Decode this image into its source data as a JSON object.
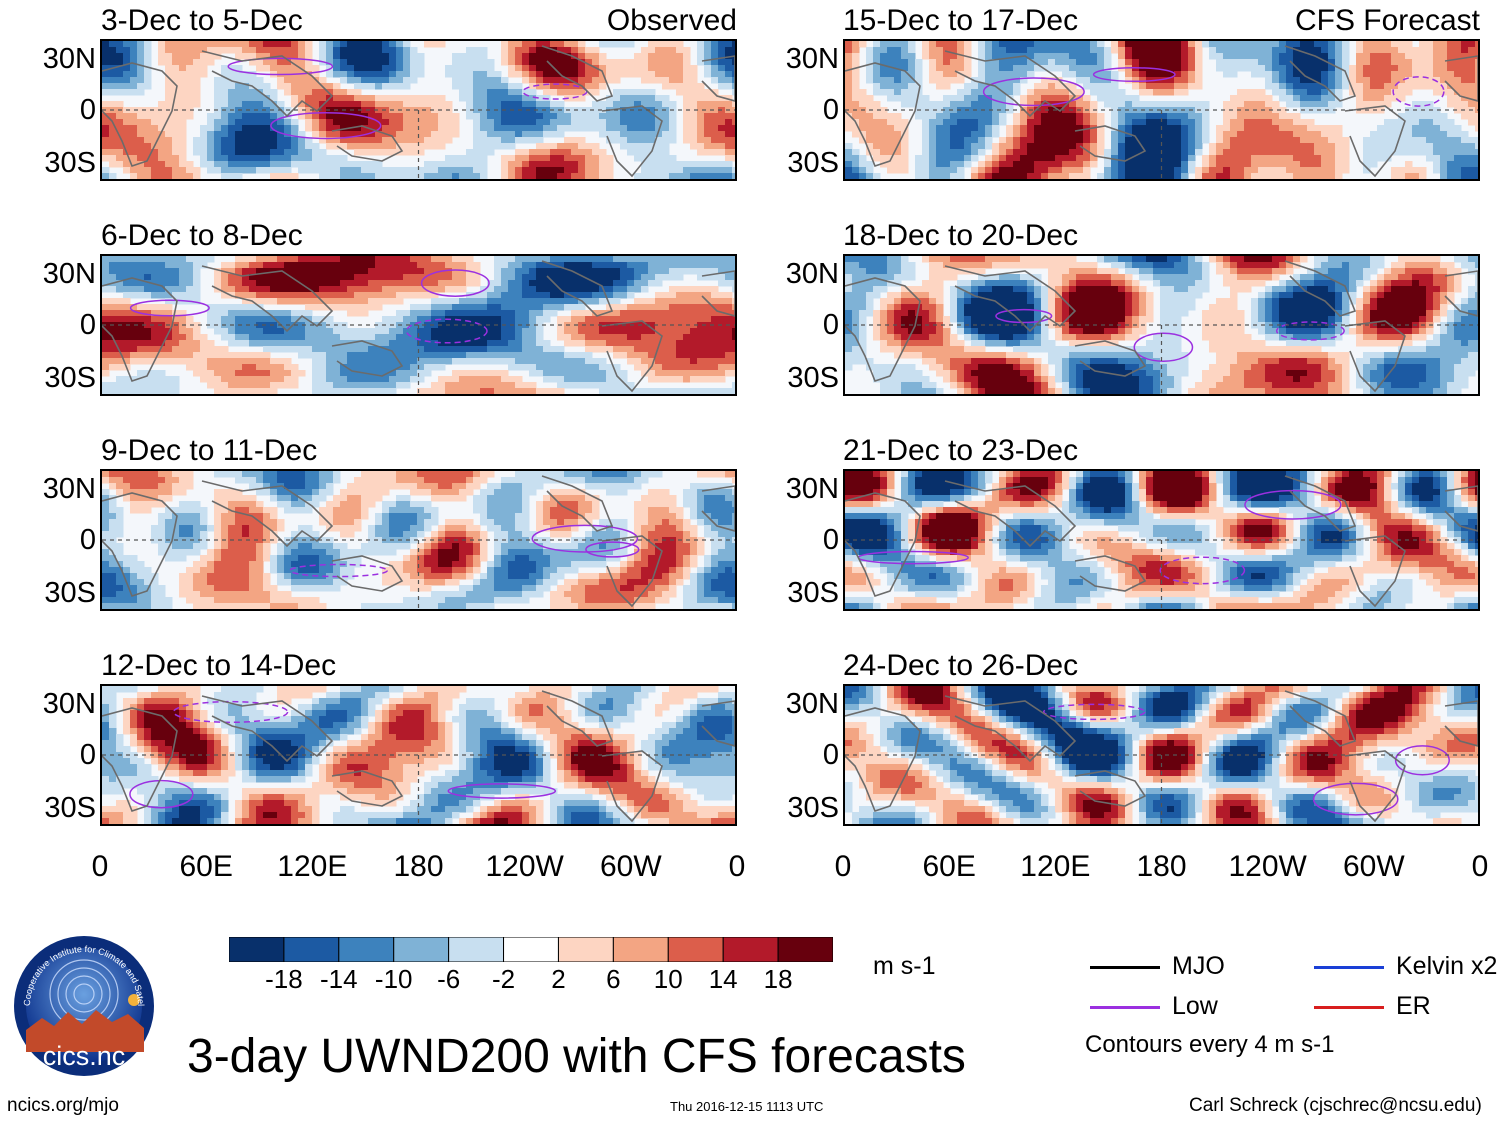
{
  "chart_data": {
    "type": "heatmap",
    "title": "3-day UWND200 with CFS forecasts",
    "variable": "UWND200",
    "units": "m s-1",
    "panels": [
      {
        "period": "3-Dec to 5-Dec",
        "tag": "Observed"
      },
      {
        "period": "6-Dec to 8-Dec",
        "tag": ""
      },
      {
        "period": "9-Dec to 11-Dec",
        "tag": ""
      },
      {
        "period": "12-Dec to 14-Dec",
        "tag": ""
      },
      {
        "period": "15-Dec to 17-Dec",
        "tag": "CFS Forecast"
      },
      {
        "period": "18-Dec to 20-Dec",
        "tag": ""
      },
      {
        "period": "21-Dec to 23-Dec",
        "tag": ""
      },
      {
        "period": "24-Dec to 26-Dec",
        "tag": ""
      }
    ],
    "y_ticks": [
      "30N",
      "0",
      "30S"
    ],
    "x_ticks": [
      "0",
      "60E",
      "120E",
      "180",
      "120W",
      "60W",
      "0"
    ],
    "ylim": [
      -40,
      40
    ],
    "xlim": [
      0,
      360
    ],
    "colorbar": {
      "ticks": [
        "-18",
        "-14",
        "-10",
        "-6",
        "-2",
        "2",
        "6",
        "10",
        "14",
        "18"
      ],
      "colors": [
        "#08306b",
        "#1c5aa3",
        "#3d82bd",
        "#7fb2d6",
        "#c8dff0",
        "#ffffff",
        "#fdd5c2",
        "#f3a583",
        "#dc5e4b",
        "#b31a2a",
        "#67000d"
      ]
    },
    "legend": [
      {
        "label": "MJO",
        "color": "#000000"
      },
      {
        "label": "Kelvin x2",
        "color": "#1a3fd6"
      },
      {
        "label": "Low",
        "color": "#9b30e0"
      },
      {
        "label": "ER",
        "color": "#d81e1e"
      }
    ],
    "contour_note": "Contours every 4 m s-1"
  },
  "footer": {
    "logo_text": "cics.nc",
    "logo_ring_text": "Cooperative Institute for Climate and Satellites",
    "website": "ncics.org/mjo",
    "timestamp": "Thu 2016-12-15 1113 UTC",
    "author": "Carl Schreck (cjschrec@ncsu.edu)"
  }
}
